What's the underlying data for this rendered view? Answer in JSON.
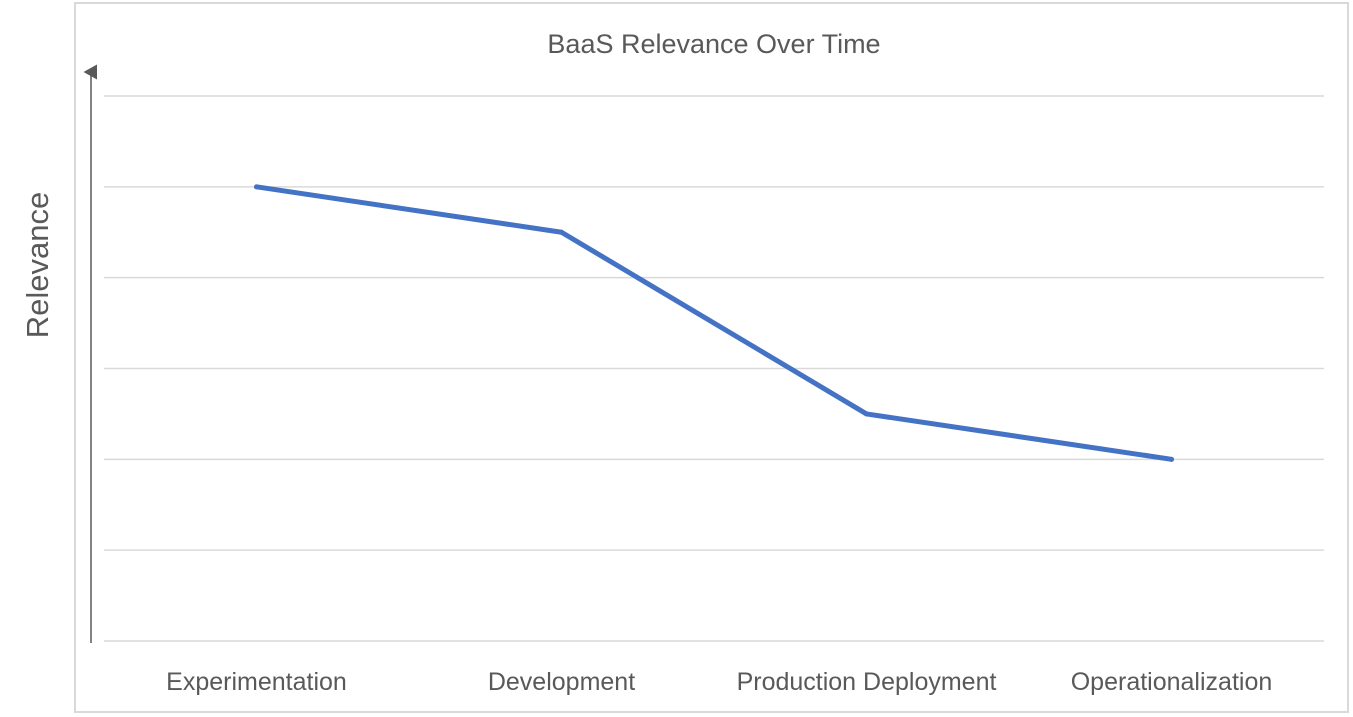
{
  "chart_data": {
    "type": "line",
    "title": "BaaS Relevance Over Time",
    "xlabel": "",
    "ylabel": "Relevance",
    "categories": [
      "Experimentation",
      "Development",
      "Production Deployment",
      "Operationalization"
    ],
    "series": [
      {
        "values": [
          5.0,
          4.5,
          2.5,
          2.0
        ],
        "color": "#4472c4"
      }
    ],
    "ylim": [
      0,
      6
    ],
    "y_gridline_step": 1,
    "y_tick_labels_shown": false,
    "grid": true,
    "legend": "none",
    "y_axis_arrow": true
  },
  "colors": {
    "text": "#595959",
    "grid": "#d9d9d9",
    "frame": "#d9d9d9",
    "axis_arrow": "#595959"
  }
}
